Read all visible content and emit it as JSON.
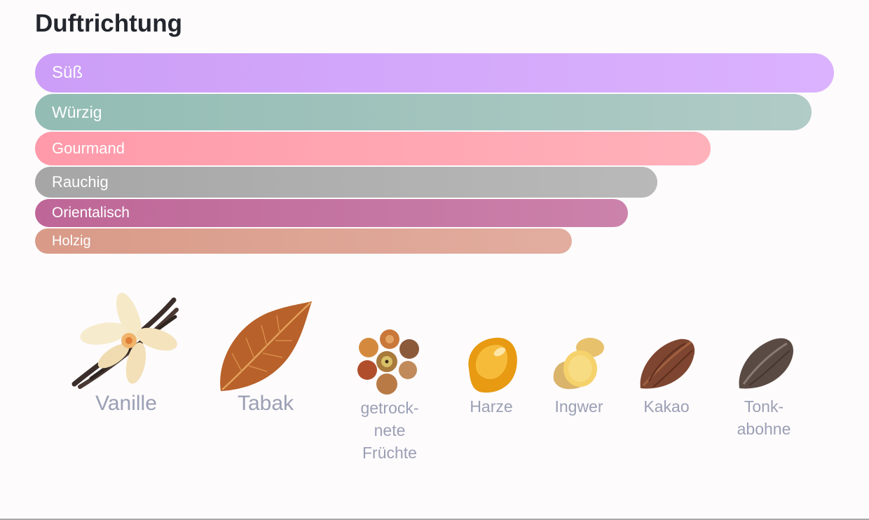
{
  "title": "Duftrichtung",
  "scent_bars": [
    {
      "label": "Süß",
      "value": 1.0
    },
    {
      "label": "Würzig",
      "value": 0.972
    },
    {
      "label": "Gourmand",
      "value": 0.846
    },
    {
      "label": "Rauchig",
      "value": 0.779
    },
    {
      "label": "Orientalisch",
      "value": 0.742
    },
    {
      "label": "Holzig",
      "value": 0.672
    }
  ],
  "ingredients": [
    {
      "label": "Vanille",
      "icon": "vanilla-flower-icon"
    },
    {
      "label": "Tabak",
      "icon": "tobacco-leaf-icon"
    },
    {
      "label": "getrock-\nnete\nFrüchte",
      "icon": "dried-fruits-icon"
    },
    {
      "label": "Harze",
      "icon": "resin-icon"
    },
    {
      "label": "Ingwer",
      "icon": "ginger-icon"
    },
    {
      "label": "Kakao",
      "icon": "cocoa-pod-icon"
    },
    {
      "label": "Tonk-\nabohne",
      "icon": "tonka-bean-icon"
    }
  ]
}
